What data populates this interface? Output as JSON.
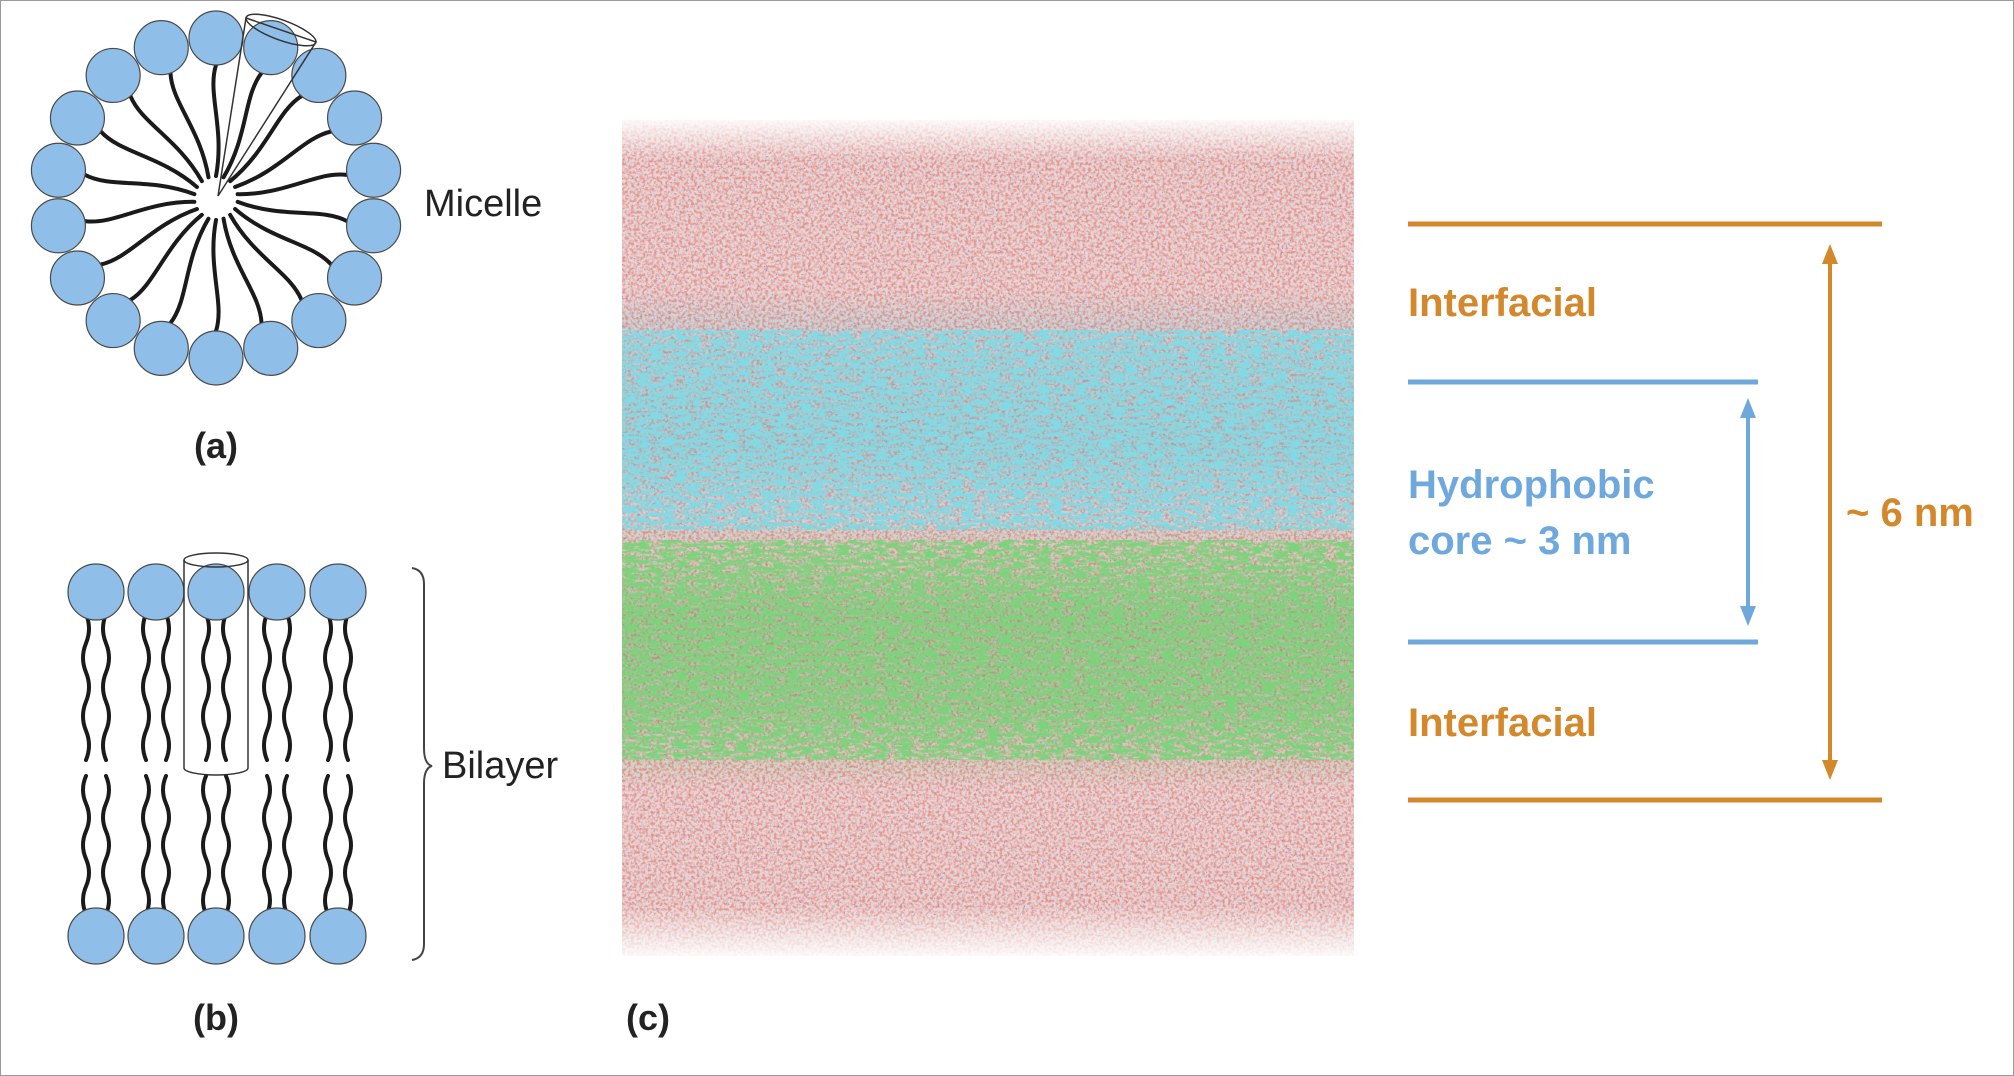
{
  "panel_a": {
    "label": "(a)",
    "caption": "Micelle"
  },
  "panel_b": {
    "label": "(b)",
    "caption": "Bilayer"
  },
  "panel_c": {
    "label": "(c)"
  },
  "annotations": {
    "interfacial_top": "Interfacial",
    "hydrophobic_line1": "Hydrophobic",
    "hydrophobic_line2": "core ~ 3 nm",
    "interfacial_bottom": "Interfacial",
    "total_thickness": "~ 6 nm"
  },
  "colors": {
    "headgroup": "#8fbfe8",
    "tail": "#1a1a1a",
    "orange_accent": "#d4882c",
    "blue_accent": "#6fa8dc",
    "water_red": "#c0504d",
    "leaflet_cyan": "#3fb7c9",
    "leaflet_green": "#3aa83a"
  }
}
